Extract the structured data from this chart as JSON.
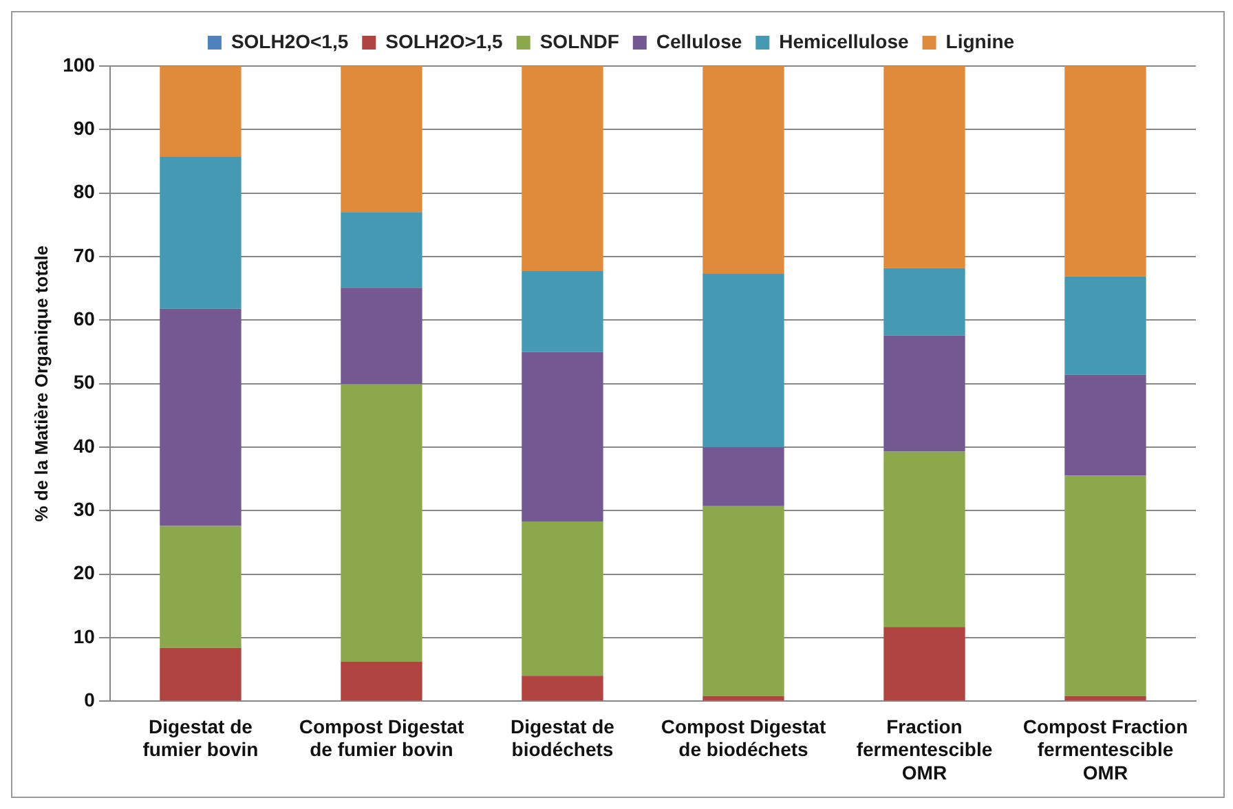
{
  "chart_data": {
    "type": "bar",
    "stacked": true,
    "ylabel": "% de la Matière Organique totale",
    "categories": [
      "Digestat de fumier bovin",
      "Compost Digestat de fumier bovin",
      "Digestat de biodéchets",
      "Compost Digestat de biodéchets",
      "Fraction fermentescible OMR",
      "Compost Fraction fermentescible OMR"
    ],
    "series": [
      {
        "name": "SOLH2O<1,5",
        "color": "#4f81bd",
        "values": [
          0,
          0,
          0,
          0,
          0,
          0
        ]
      },
      {
        "name": "SOLH2O>1,5",
        "color": "#b04440",
        "values": [
          8.4,
          6.2,
          4.0,
          0.8,
          11.7,
          0.8
        ]
      },
      {
        "name": "SOLNDF",
        "color": "#8ba94c",
        "values": [
          19.2,
          43.7,
          24.3,
          29.9,
          27.6,
          34.7
        ]
      },
      {
        "name": "Cellulose",
        "color": "#735891",
        "values": [
          34.2,
          15.2,
          26.7,
          9.3,
          18.3,
          15.9
        ]
      },
      {
        "name": "Hemicellulose",
        "color": "#4599b3",
        "values": [
          23.9,
          11.9,
          12.8,
          27.3,
          10.6,
          15.5
        ]
      },
      {
        "name": "Lignine",
        "color": "#e08a3c",
        "values": [
          14.3,
          23.0,
          32.2,
          32.7,
          31.8,
          33.1
        ]
      }
    ],
    "ylim": [
      0,
      100
    ],
    "yticks": [
      0,
      10,
      20,
      30,
      40,
      50,
      60,
      70,
      80,
      90,
      100
    ],
    "grid": "y",
    "legend": "top"
  }
}
